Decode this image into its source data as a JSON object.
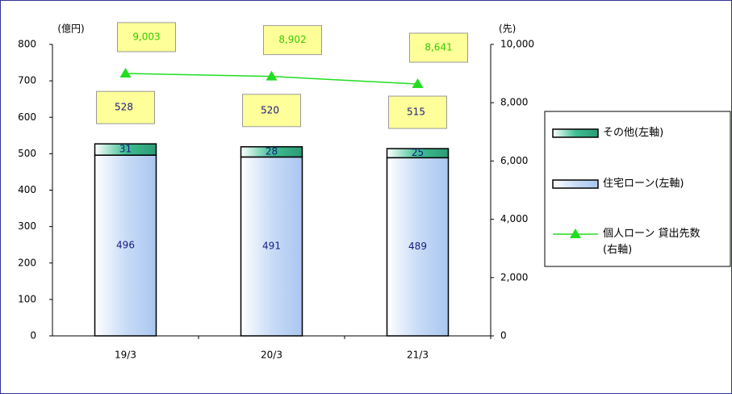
{
  "chart_data": {
    "type": "bar",
    "ylabel": "(億円)",
    "y2label": "(先)",
    "categories": [
      "19/3",
      "20/3",
      "21/3"
    ],
    "series": [
      {
        "name": "住宅ローン(左軸)",
        "type": "bar",
        "color": "#c9dcf7",
        "values": [
          496,
          491,
          489
        ]
      },
      {
        "name": "その他(左軸)",
        "type": "bar",
        "color": "#3fbf94",
        "values": [
          31,
          28,
          25
        ]
      },
      {
        "name": "個人ローン 貸出先数(右軸)",
        "type": "line",
        "axis": "y2",
        "color": "#22dd22",
        "values": [
          9003,
          8902,
          8641
        ],
        "value_labels": [
          "9,003",
          "8,902",
          "8,641"
        ]
      }
    ],
    "totals": [
      528,
      520,
      515
    ],
    "stacked": true,
    "ylim": [
      0,
      800
    ],
    "yticks": [
      0,
      100,
      200,
      300,
      400,
      500,
      600,
      700,
      800
    ],
    "y2lim": [
      0,
      10000
    ],
    "y2ticks": [
      0,
      {
        "value": 2000,
        "label": "2,000"
      },
      {
        "value": 4000,
        "label": "4,000"
      },
      {
        "value": 6000,
        "label": "6,000"
      },
      {
        "value": 8000,
        "label": "8,000"
      },
      {
        "value": 10000,
        "label": "10,000"
      }
    ],
    "grid": false
  }
}
